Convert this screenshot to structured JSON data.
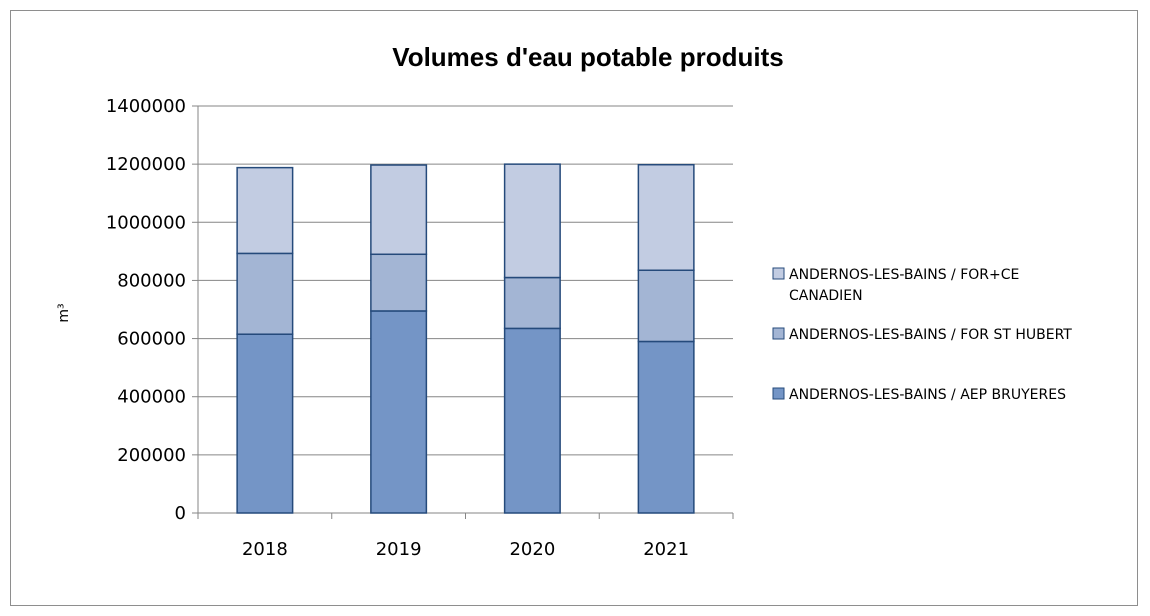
{
  "chart_data": {
    "type": "bar",
    "stacked": true,
    "title": "Volumes d'eau potable produits",
    "xlabel": "",
    "ylabel": "m³",
    "categories": [
      "2018",
      "2019",
      "2020",
      "2021"
    ],
    "ylim": [
      0,
      1400000
    ],
    "yticks": [
      "0",
      "200000",
      "400000",
      "600000",
      "800000",
      "1000000",
      "1200000",
      "1400000"
    ],
    "grid": true,
    "legend_position": "right",
    "series": [
      {
        "name": "ANDERNOS-LES-BAINS / AEP BRUYERES",
        "color": "#7495c6",
        "values": [
          615000,
          695000,
          635000,
          590000
        ]
      },
      {
        "name": "ANDERNOS-LES-BAINS / FOR ST HUBERT",
        "color": "#a3b5d4",
        "values": [
          278000,
          195000,
          175000,
          245000
        ]
      },
      {
        "name": "ANDERNOS-LES-BAINS / FOR+CE CANADIEN",
        "color": "#c2cce2",
        "values": [
          295000,
          307000,
          390000,
          363000
        ],
        "legend_lines": [
          "ANDERNOS-LES-BAINS / FOR+CE",
          "CANADIEN"
        ]
      }
    ]
  }
}
